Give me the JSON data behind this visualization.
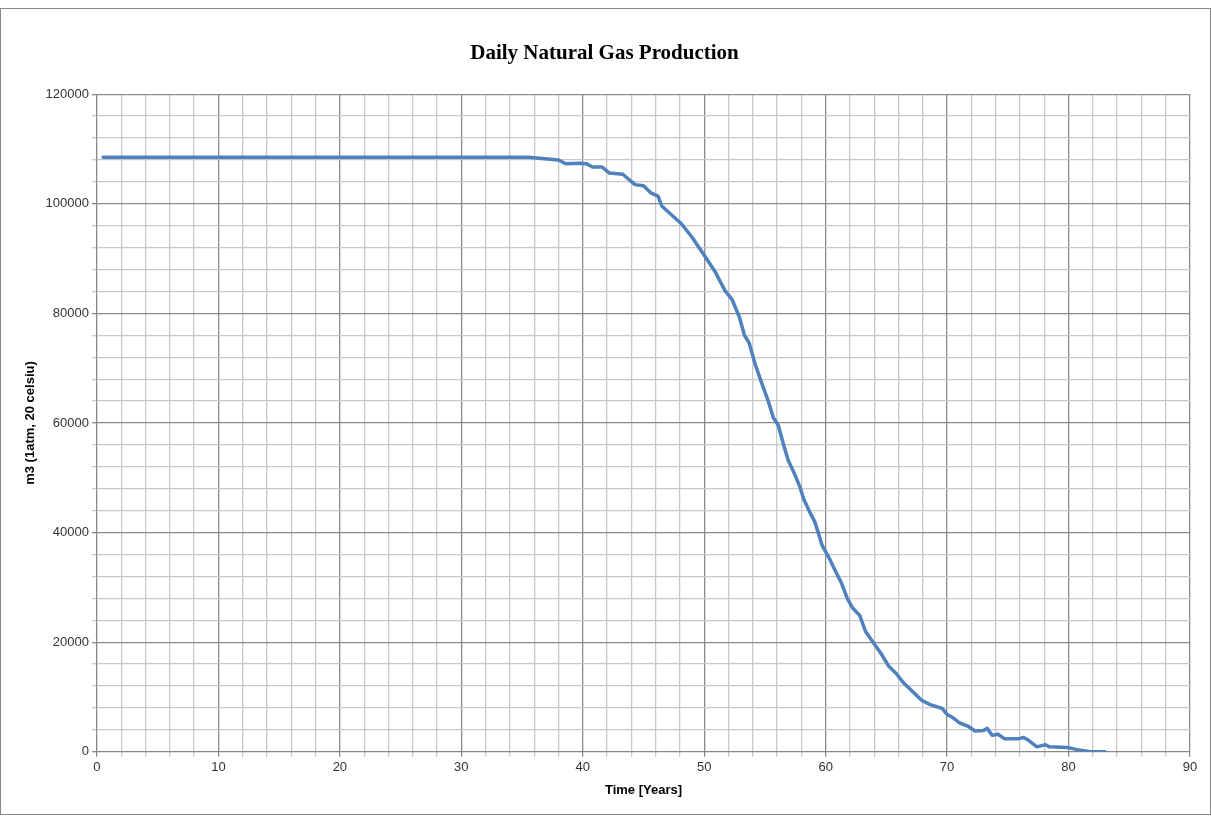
{
  "chart_data": {
    "type": "line",
    "title": "Daily Natural Gas Production",
    "xlabel": "Time [Years]",
    "ylabel": "m3 (1atm, 20 celsiu)",
    "xlim": [
      0,
      90
    ],
    "ylim": [
      0,
      120000
    ],
    "xticks": [
      0,
      {
        "value": 2,
        "label": null
      },
      {
        "value": 4,
        "label": null
      },
      {
        "value": 6,
        "label": null
      },
      {
        "value": 8,
        "label": null
      },
      10,
      {
        "value": 12,
        "label": null
      },
      {
        "value": 14,
        "label": null
      },
      {
        "value": 16,
        "label": null
      },
      {
        "value": 18,
        "label": null
      },
      20,
      {
        "value": 22,
        "label": null
      },
      {
        "value": 24,
        "label": null
      },
      {
        "value": 26,
        "label": null
      },
      {
        "value": 28,
        "label": null
      },
      30,
      {
        "value": 32,
        "label": null
      },
      {
        "value": 34,
        "label": null
      },
      {
        "value": 36,
        "label": null
      },
      {
        "value": 38,
        "label": null
      },
      40,
      {
        "value": 42,
        "label": null
      },
      {
        "value": 44,
        "label": null
      },
      {
        "value": 46,
        "label": null
      },
      {
        "value": 48,
        "label": null
      },
      50,
      {
        "value": 52,
        "label": null
      },
      {
        "value": 54,
        "label": null
      },
      {
        "value": 56,
        "label": null
      },
      {
        "value": 58,
        "label": null
      },
      60,
      {
        "value": 62,
        "label": null
      },
      {
        "value": 64,
        "label": null
      },
      {
        "value": 66,
        "label": null
      },
      {
        "value": 68,
        "label": null
      },
      70,
      {
        "value": 72,
        "label": null
      },
      {
        "value": 74,
        "label": null
      },
      {
        "value": 76,
        "label": null
      },
      {
        "value": 78,
        "label": null
      },
      80,
      {
        "value": 82,
        "label": null
      },
      {
        "value": 84,
        "label": null
      },
      {
        "value": 86,
        "label": null
      },
      {
        "value": 88,
        "label": null
      },
      90
    ],
    "yticks": [
      0,
      {
        "value": 4000,
        "label": null
      },
      {
        "value": 8000,
        "label": null
      },
      {
        "value": 12000,
        "label": null
      },
      {
        "value": 16000,
        "label": null
      },
      20000,
      {
        "value": 24000,
        "label": null
      },
      {
        "value": 28000,
        "label": null
      },
      {
        "value": 32000,
        "label": null
      },
      {
        "value": 36000,
        "label": null
      },
      40000,
      {
        "value": 44000,
        "label": null
      },
      {
        "value": 48000,
        "label": null
      },
      {
        "value": 52000,
        "label": null
      },
      {
        "value": 56000,
        "label": null
      },
      60000,
      {
        "value": 64000,
        "label": null
      },
      {
        "value": 68000,
        "label": null
      },
      {
        "value": 72000,
        "label": null
      },
      {
        "value": 76000,
        "label": null
      },
      80000,
      {
        "value": 84000,
        "label": null
      },
      {
        "value": 88000,
        "label": null
      },
      {
        "value": 92000,
        "label": null
      },
      {
        "value": 96000,
        "label": null
      },
      100000,
      {
        "value": 104000,
        "label": null
      },
      {
        "value": 108000,
        "label": null
      },
      {
        "value": 112000,
        "label": null
      },
      {
        "value": 116000,
        "label": null
      },
      120000
    ],
    "grid": true,
    "legend": false,
    "marker": "none",
    "line_style": "solid",
    "x": [
      0.5,
      35.5,
      38.0,
      38.6,
      39.7,
      40.3,
      40.8,
      41.6,
      42.2,
      43.3,
      44.3,
      45.0,
      45.6,
      46.2,
      46.5,
      48.1,
      49.0,
      50.0,
      50.9,
      51.7,
      52.3,
      52.9,
      53.3,
      53.7,
      54.2,
      54.7,
      55.3,
      55.7,
      56.1,
      56.5,
      56.9,
      57.5,
      57.9,
      58.2,
      58.7,
      59.1,
      59.4,
      59.7,
      60.3,
      60.8,
      61.3,
      61.8,
      62.2,
      62.8,
      63.3,
      63.9,
      64.6,
      65.2,
      65.8,
      66.4,
      67.2,
      67.9,
      68.6,
      69.6,
      70.0,
      70.5,
      71.0,
      71.7,
      72.3,
      73.0,
      73.3,
      73.7,
      74.2,
      74.7,
      75.9,
      76.3,
      76.7,
      77.4,
      78.1,
      78.4,
      79.9,
      80.7,
      81.8,
      83.0
    ],
    "series": [
      {
        "color": "#4f81bd",
        "values": [
          108500,
          108500,
          108000,
          107300,
          107400,
          107300,
          106700,
          106700,
          105600,
          105400,
          103500,
          103300,
          102000,
          101400,
          99600,
          96400,
          93900,
          90600,
          87600,
          84200,
          82500,
          79300,
          76100,
          74600,
          70700,
          67500,
          63800,
          60900,
          59600,
          56300,
          53300,
          50400,
          48200,
          46100,
          43700,
          42000,
          39900,
          37700,
          35300,
          33000,
          30800,
          27900,
          26300,
          24900,
          21900,
          20000,
          17800,
          15600,
          14300,
          12600,
          10900,
          9400,
          8600,
          7900,
          6800,
          6200,
          5300,
          4700,
          3800,
          3900,
          4300,
          3000,
          3200,
          2400,
          2400,
          2600,
          2100,
          900,
          1300,
          900,
          800,
          400,
          0,
          0
        ]
      }
    ]
  }
}
